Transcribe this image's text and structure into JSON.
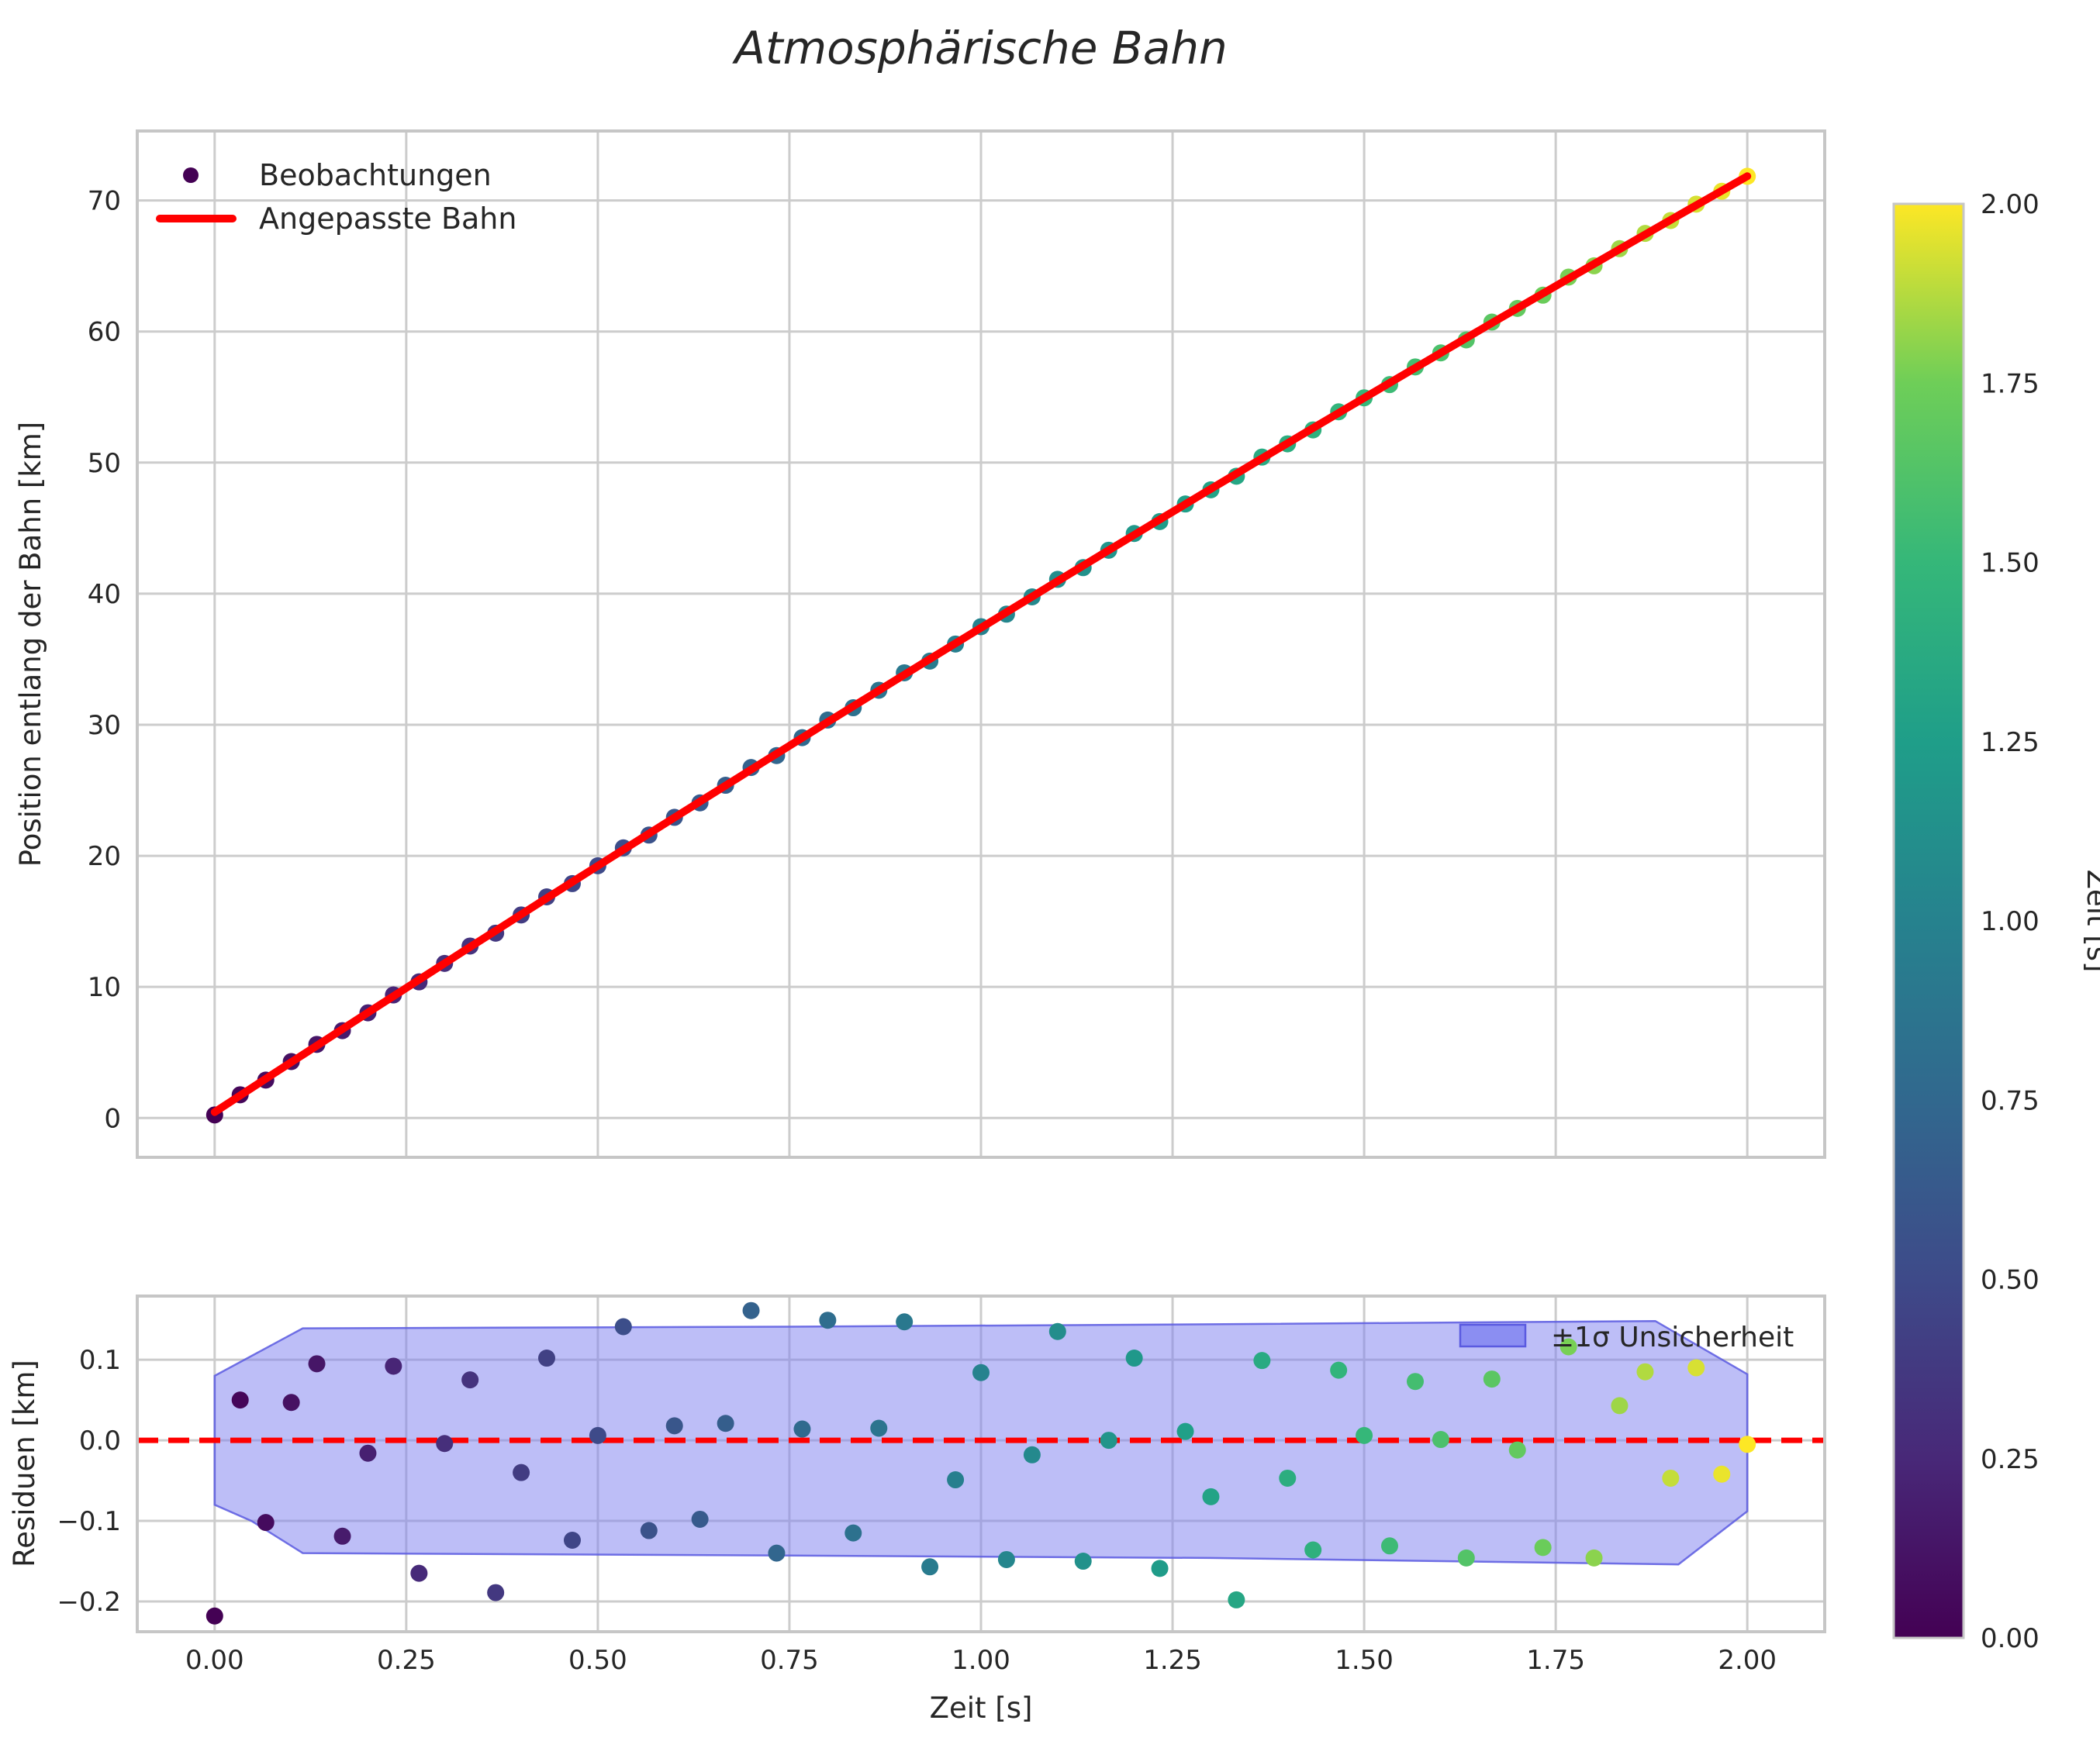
{
  "title": "Atmosphärische Bahn",
  "colors": {
    "fit_line": "#ff0000",
    "zero_line": "#ff0000",
    "band_fill": "#7b7ef0",
    "band_edge": "#5a5ae0",
    "grid": "#cccccc",
    "spine": "#c6c6c6",
    "text": "#262626",
    "background": "#ffffff",
    "viridis": [
      "#440154",
      "#482878",
      "#3e4a89",
      "#31688e",
      "#26828e",
      "#1f9e89",
      "#35b779",
      "#6ece58",
      "#fde725"
    ]
  },
  "colorbar": {
    "label": "Zeit [s]",
    "vmin": 0.0,
    "vmax": 2.0,
    "colormap": "viridis",
    "tick_values": [
      0.0,
      0.25,
      0.5,
      0.75,
      1.0,
      1.25,
      1.5,
      1.75,
      2.0
    ],
    "tick_labels": [
      "0.00",
      "0.25",
      "0.50",
      "0.75",
      "1.00",
      "1.25",
      "1.50",
      "1.75",
      "2.00"
    ]
  },
  "chart_data": [
    {
      "id": "trajectory",
      "type": "scatter",
      "title": "Atmosphärische Bahn",
      "xlabel": "",
      "ylabel": "Position entlang der Bahn [km]",
      "xlim": [
        -0.101,
        2.101
      ],
      "ylim": [
        -3.0,
        75.3
      ],
      "grid": true,
      "y_tick_values": [
        0,
        10,
        20,
        30,
        40,
        50,
        60,
        70
      ],
      "y_tick_labels": [
        "0",
        "10",
        "20",
        "30",
        "40",
        "50",
        "60",
        "70"
      ],
      "x_grid_values": [
        0.0,
        0.25,
        0.5,
        0.75,
        1.0,
        1.25,
        1.5,
        1.75,
        2.0
      ],
      "legend": {
        "position": "upper left",
        "entries": [
          {
            "label": "Beobachtungen",
            "type": "point"
          },
          {
            "label": "Angepasste Bahn",
            "type": "line"
          }
        ]
      },
      "series": [
        {
          "name": "Beobachtungen",
          "type": "scatter",
          "color_by": "t (viridis, 0-2 s)",
          "position_rule": "position_km = fit(t) + residual_km",
          "t": [
            0.0,
            0.0333,
            0.0667,
            0.1,
            0.1333,
            0.1667,
            0.2,
            0.2333,
            0.2667,
            0.3,
            0.3333,
            0.3667,
            0.4,
            0.4333,
            0.4667,
            0.5,
            0.5333,
            0.5667,
            0.6,
            0.6333,
            0.6667,
            0.7,
            0.7333,
            0.7667,
            0.8,
            0.8333,
            0.8667,
            0.9,
            0.9333,
            0.9667,
            1.0,
            1.0333,
            1.0667,
            1.1,
            1.1333,
            1.1667,
            1.2,
            1.2333,
            1.2667,
            1.3,
            1.3333,
            1.3667,
            1.4,
            1.4333,
            1.4667,
            1.5,
            1.5333,
            1.5667,
            1.6,
            1.6333,
            1.6667,
            1.7,
            1.7333,
            1.7667,
            1.8,
            1.8333,
            1.8667,
            1.9,
            1.9333,
            1.9667,
            2.0
          ],
          "residuals_km": [
            -0.218,
            0.05,
            -0.102,
            0.047,
            0.095,
            -0.119,
            -0.016,
            0.092,
            -0.165,
            -0.004,
            0.075,
            -0.189,
            -0.04,
            0.102,
            -0.124,
            0.006,
            0.141,
            -0.112,
            0.018,
            -0.098,
            0.021,
            0.161,
            -0.14,
            0.014,
            0.149,
            -0.115,
            0.015,
            0.147,
            -0.157,
            -0.049,
            0.084,
            -0.148,
            -0.018,
            0.135,
            -0.15,
            0.0,
            0.102,
            -0.159,
            0.011,
            -0.07,
            -0.198,
            0.099,
            -0.047,
            -0.136,
            0.087,
            0.006,
            -0.131,
            0.073,
            0.001,
            -0.146,
            0.076,
            -0.012,
            -0.133,
            0.116,
            -0.146,
            0.043,
            0.085,
            -0.047,
            0.09,
            -0.042,
            -0.005
          ]
        },
        {
          "name": "Angepasste Bahn",
          "type": "line",
          "fit_model": "p(t) = p0 + v0*t + a*t^2",
          "fit_coefficients_km": [
            0.45,
            38.2,
            -1.25
          ],
          "t_range": [
            0.0,
            2.0
          ]
        }
      ]
    },
    {
      "id": "residuals",
      "type": "scatter",
      "xlabel": "Zeit [s]",
      "ylabel": "Residuen [km]",
      "xlim": [
        -0.101,
        2.101
      ],
      "ylim": [
        -0.2375,
        0.179
      ],
      "grid": true,
      "y_tick_values": [
        0.1,
        0.0,
        -0.1,
        -0.2
      ],
      "y_tick_labels": [
        "0.1",
        "0.0",
        "−0.1",
        "−0.2"
      ],
      "x_tick_values": [
        0.0,
        0.25,
        0.5,
        0.75,
        1.0,
        1.25,
        1.5,
        1.75,
        2.0
      ],
      "x_tick_labels": [
        "0.00",
        "0.25",
        "0.50",
        "0.75",
        "1.00",
        "1.25",
        "1.50",
        "1.75",
        "2.00"
      ],
      "zero_line": {
        "y": 0.0,
        "style": "dashed"
      },
      "band": {
        "label": "±1σ Unsicherheit",
        "upper": [
          [
            0.0,
            0.08
          ],
          [
            0.115,
            0.139
          ],
          [
            0.75,
            0.141
          ],
          [
            1.3,
            0.144
          ],
          [
            1.88,
            0.148
          ],
          [
            2.0,
            0.082
          ]
        ],
        "lower": [
          [
            0.0,
            -0.08
          ],
          [
            0.048,
            -0.1
          ],
          [
            0.115,
            -0.14
          ],
          [
            0.75,
            -0.143
          ],
          [
            1.3,
            -0.146
          ],
          [
            1.91,
            -0.154
          ],
          [
            2.0,
            -0.088
          ]
        ]
      }
    }
  ]
}
